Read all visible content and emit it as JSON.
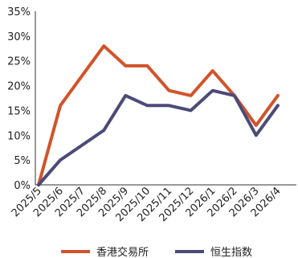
{
  "chart_data": {
    "type": "line",
    "title": "",
    "xlabel": "",
    "ylabel": "",
    "x": [
      "2025/5",
      "2025/6",
      "2025/7",
      "2025/8",
      "2025/9",
      "2025/10",
      "2025/11",
      "2025/12",
      "2026/1",
      "2026/2",
      "2026/3",
      "2026/4"
    ],
    "x_tick_labels": [
      "2025/5",
      "2025/6",
      "2025/7",
      "2025/8",
      "2025/9",
      "2025/10",
      "2025/11",
      "2025/12",
      "2026/1",
      "2026/2",
      "2026/3",
      "2026/4"
    ],
    "y_tick_labels": [
      "0%",
      "5%",
      "10%",
      "15%",
      "20%",
      "25%",
      "30%",
      "35%"
    ],
    "ylim": [
      0,
      35
    ],
    "y_unit": "%",
    "grid": false,
    "legend_position": "bottom",
    "series": [
      {
        "name": "香港交易所",
        "color": "#d2532a",
        "values": [
          0,
          16,
          22,
          28,
          24,
          24,
          19,
          18,
          23,
          18,
          12,
          18
        ]
      },
      {
        "name": "恒生指数",
        "color": "#4b4a78",
        "values": [
          0,
          5,
          8,
          11,
          18,
          16,
          16,
          15,
          19,
          18,
          10,
          16
        ]
      }
    ]
  }
}
